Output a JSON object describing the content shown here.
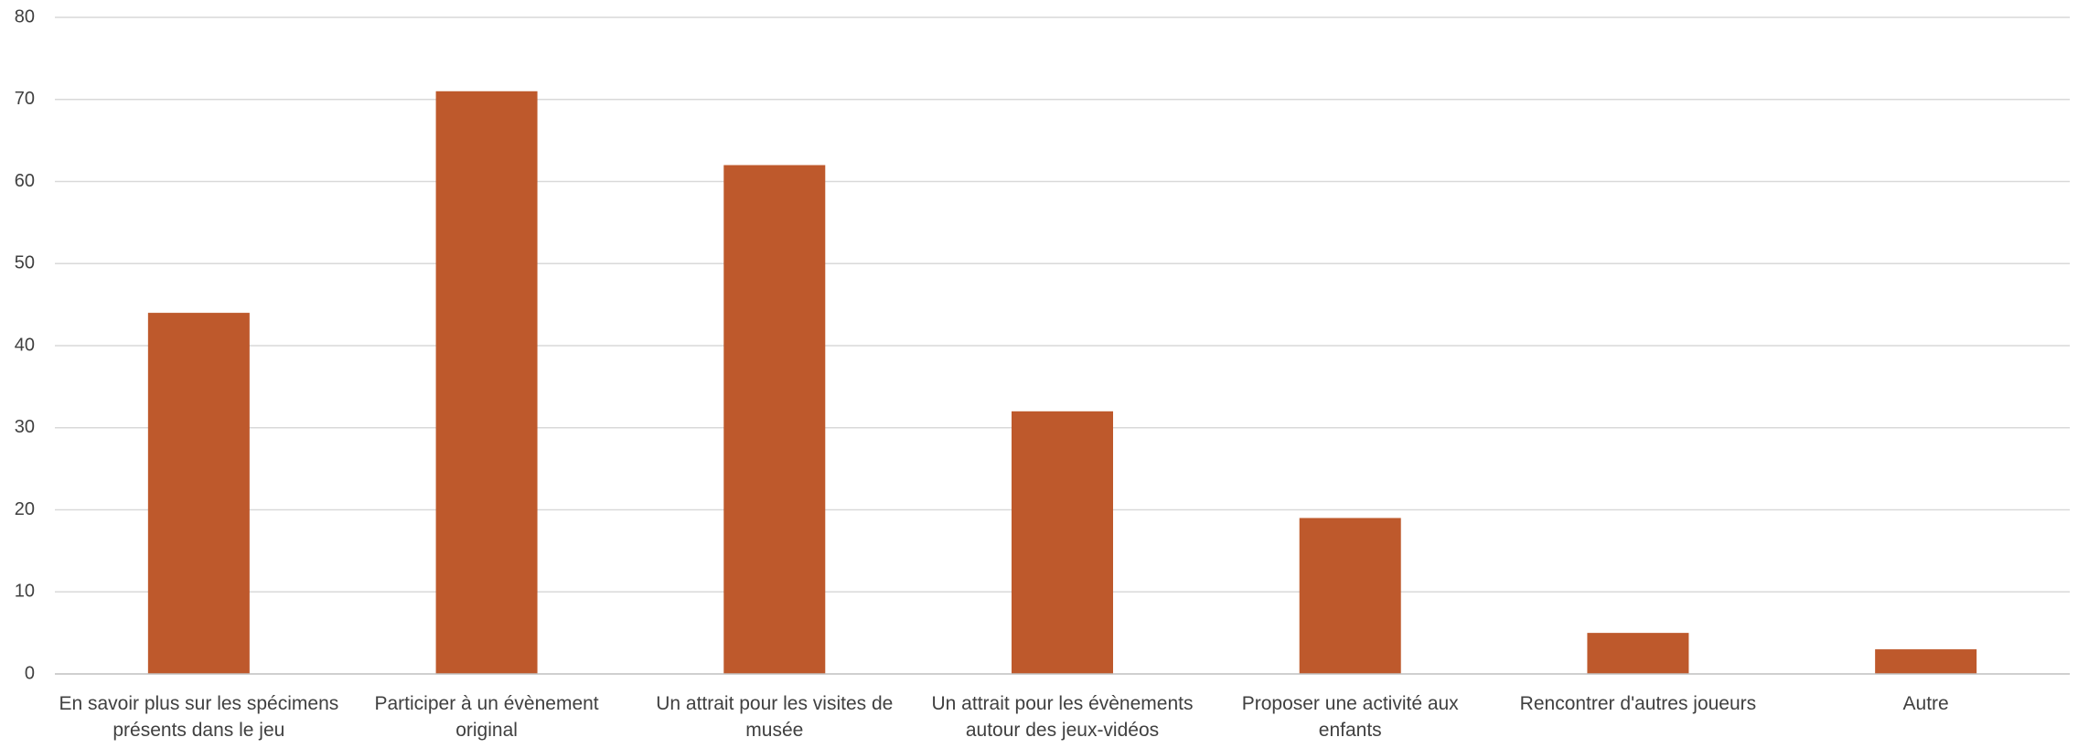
{
  "colors": {
    "bar": "#BE592C",
    "grid": "#D9D9D9",
    "axis": "#BFBFBF",
    "text": "#404040"
  },
  "chart_data": {
    "type": "bar",
    "title": "",
    "xlabel": "",
    "ylabel": "",
    "ylim": [
      0,
      80
    ],
    "yticks": [
      0,
      10,
      20,
      30,
      40,
      50,
      60,
      70,
      80
    ],
    "grid": true,
    "legend": "none",
    "categories": [
      [
        "En savoir plus sur les spécimens",
        "présents dans le jeu"
      ],
      [
        "Participer à un évènement",
        "original"
      ],
      [
        "Un attrait pour les visites de",
        "musée"
      ],
      [
        "Un attrait pour les évènements",
        "autour des jeux-vidéos"
      ],
      [
        "Proposer une activité aux",
        "enfants"
      ],
      [
        "Rencontrer d'autres joueurs"
      ],
      [
        "Autre"
      ]
    ],
    "values": [
      44,
      71,
      62,
      32,
      19,
      5,
      3
    ]
  }
}
